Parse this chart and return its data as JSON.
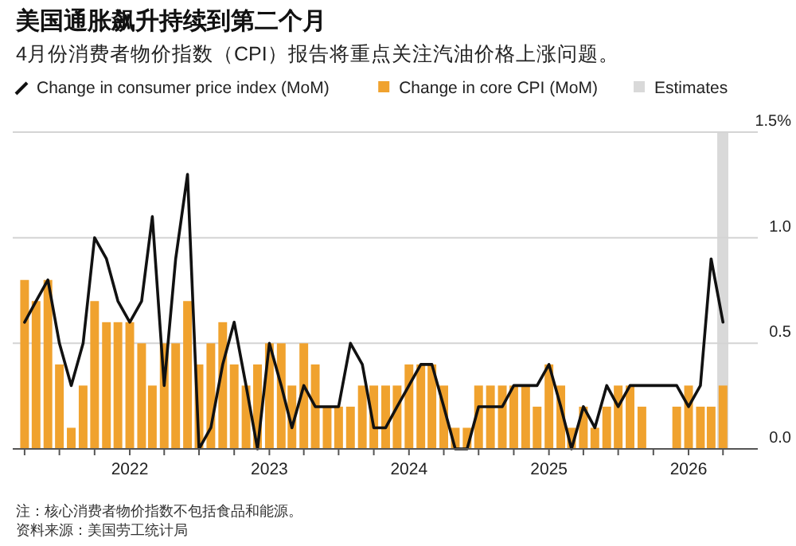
{
  "chart_data": {
    "type": "bar",
    "title": "美国通胀飙升持续到第二个月",
    "subtitle": "4月份消费者物价指数（CPI）报告将重点关注汽油价格上涨问题。",
    "x": [
      "2021-04",
      "2021-05",
      "2021-06",
      "2021-07",
      "2021-08",
      "2021-09",
      "2021-10",
      "2021-11",
      "2021-12",
      "2022-01",
      "2022-02",
      "2022-03",
      "2022-04",
      "2022-05",
      "2022-06",
      "2022-07",
      "2022-08",
      "2022-09",
      "2022-10",
      "2022-11",
      "2022-12",
      "2023-01",
      "2023-02",
      "2023-03",
      "2023-04",
      "2023-05",
      "2023-06",
      "2023-07",
      "2023-08",
      "2023-09",
      "2023-10",
      "2023-11",
      "2023-12",
      "2024-01",
      "2024-02",
      "2024-03",
      "2024-04",
      "2024-05",
      "2024-06",
      "2024-07",
      "2024-08",
      "2024-09",
      "2024-10",
      "2024-11",
      "2024-12",
      "2025-01",
      "2025-02",
      "2025-03",
      "2025-04",
      "2025-05",
      "2025-06",
      "2025-07",
      "2025-08",
      "2025-09",
      "2025-10",
      "2025-11",
      "2025-12",
      "2026-01",
      "2026-02",
      "2026-03",
      "2026-04"
    ],
    "series": [
      {
        "name": "Change in core CPI (MoM)",
        "color": "#f0a22e",
        "values": [
          0.8,
          0.7,
          0.8,
          0.4,
          0.1,
          0.3,
          0.7,
          0.6,
          0.6,
          0.6,
          0.5,
          0.3,
          0.5,
          0.5,
          0.7,
          0.4,
          0.5,
          0.6,
          0.4,
          0.3,
          0.4,
          0.5,
          0.5,
          0.3,
          0.5,
          0.4,
          0.2,
          0.2,
          0.2,
          0.3,
          0.3,
          0.3,
          0.3,
          0.4,
          0.4,
          0.4,
          0.3,
          0.1,
          0.1,
          0.3,
          0.3,
          0.3,
          0.3,
          0.3,
          0.2,
          0.4,
          0.3,
          0.1,
          0.2,
          0.1,
          0.2,
          0.3,
          0.3,
          0.2,
          null,
          null,
          0.2,
          0.3,
          0.2,
          0.2,
          0.3
        ]
      },
      {
        "name": "Change in consumer price index (MoM)",
        "type": "line",
        "color": "#111111",
        "values": [
          0.6,
          0.7,
          0.8,
          0.5,
          0.3,
          0.5,
          1.0,
          0.9,
          0.7,
          0.6,
          0.7,
          1.1,
          0.3,
          0.9,
          1.3,
          0.0,
          0.1,
          0.4,
          0.6,
          0.3,
          0.0,
          0.5,
          0.3,
          0.1,
          0.3,
          0.2,
          0.2,
          0.2,
          0.5,
          0.4,
          0.1,
          0.1,
          0.2,
          0.3,
          0.4,
          0.4,
          0.2,
          0.0,
          0.0,
          0.2,
          0.2,
          0.2,
          0.3,
          0.3,
          0.3,
          0.4,
          0.2,
          0.0,
          0.2,
          0.1,
          0.3,
          0.2,
          0.3,
          0.3,
          0.3,
          0.3,
          0.3,
          0.2,
          0.3,
          0.9,
          0.6
        ]
      }
    ],
    "bands": [
      {
        "axis": "x",
        "from": "2026-03-17",
        "to": "2026-04-15",
        "label": "Estimates",
        "color": "#d9d9d9"
      }
    ],
    "xlim": [
      "2021-03",
      "2026-07"
    ],
    "xticks": [
      {
        "value": "2021-04",
        "label": null
      },
      {
        "value": "2021-07",
        "label": null
      },
      {
        "value": "2021-10",
        "label": null
      },
      {
        "value": "2022",
        "label": "2022"
      },
      {
        "value": "2022-04",
        "label": null
      },
      {
        "value": "2022-07",
        "label": null
      },
      {
        "value": "2022-10",
        "label": null
      },
      {
        "value": "2023",
        "label": "2023"
      },
      {
        "value": "2023-04",
        "label": null
      },
      {
        "value": "2023-07",
        "label": null
      },
      {
        "value": "2023-10",
        "label": null
      },
      {
        "value": "2024",
        "label": "2024"
      },
      {
        "value": "2024-04",
        "label": null
      },
      {
        "value": "2024-07",
        "label": null
      },
      {
        "value": "2024-10",
        "label": null
      },
      {
        "value": "2025",
        "label": "2025"
      },
      {
        "value": "2025-04",
        "label": null
      },
      {
        "value": "2025-07",
        "label": null
      },
      {
        "value": "2025-10",
        "label": null
      },
      {
        "value": "2026",
        "label": "2026"
      },
      {
        "value": "2026-04",
        "label": null
      }
    ],
    "ylim": [
      0,
      1.5
    ],
    "yticks": [
      {
        "value": 0,
        "label": "0.0"
      },
      0.5,
      {
        "value": 1,
        "label": "1.0"
      },
      {
        "value": 1.5,
        "label": "1.5%"
      }
    ],
    "grid": "y",
    "legend": "top left",
    "annotations": [
      "注：核心消费者物价指数不包括食品和能源。",
      "资料来源：美国劳工统计局"
    ]
  }
}
